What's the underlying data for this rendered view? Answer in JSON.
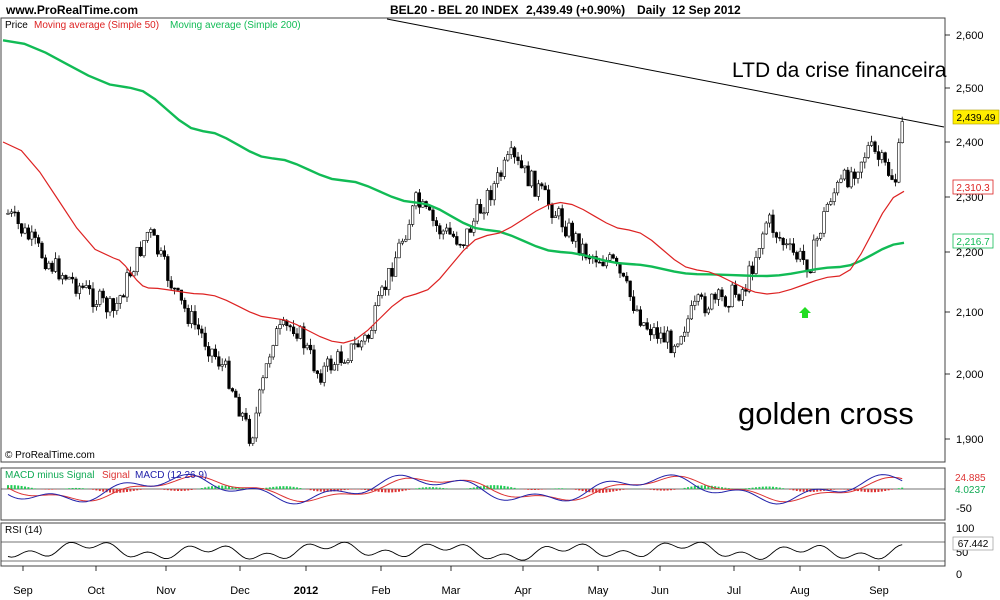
{
  "header": {
    "site": "www.ProRealTime.com",
    "instrument": "BEL20 - BEL 20 INDEX",
    "quote": "2,439.49 (+0.90%)",
    "period": "Daily",
    "date": "12 Sep 2012"
  },
  "copyright": "© ProRealTime.com",
  "legend": {
    "price": "Price",
    "ma50": "Moving average (Simple 50)",
    "ma200": "Moving average (Simple 200)"
  },
  "colors": {
    "ma50": "#dd2222",
    "ma200": "#11bb55",
    "candle": "#000000",
    "trend": "#000000",
    "arrow": "#22dd22",
    "last_bg": "#ffee00"
  },
  "chart_data": [
    {
      "type": "line",
      "title": "BEL20 - BEL 20 INDEX",
      "x_ticks": [
        "Sep",
        "Oct",
        "Nov",
        "Dec",
        "2012",
        "Feb",
        "Mar",
        "Apr",
        "May",
        "Jun",
        "Jul",
        "Aug",
        "Sep"
      ],
      "y_ticks": [
        "2,600",
        "2,500",
        "2,400",
        "2,300",
        "2,200",
        "2,100",
        "2,000",
        "1,900"
      ],
      "ylim": [
        1880,
        2625
      ],
      "series": [
        {
          "name": "Price",
          "kind": "candlestick",
          "anchors": [
            [
              "Sep",
              2270
            ],
            [
              "Sep",
              2180
            ],
            [
              "Oct",
              2100
            ],
            [
              "Oct",
              2240
            ],
            [
              "Nov",
              2120
            ],
            [
              "Nov",
              2060
            ],
            [
              "Nov",
              2000
            ],
            [
              "Dec",
              1900
            ],
            [
              "Dec",
              2060
            ],
            [
              "Dec",
              2080
            ],
            [
              "2012",
              2000
            ],
            [
              "2012",
              2030
            ],
            [
              "2012",
              2060
            ],
            [
              "Feb",
              2180
            ],
            [
              "Feb",
              2290
            ],
            [
              "Feb",
              2240
            ],
            [
              "Mar",
              2220
            ],
            [
              "Mar",
              2300
            ],
            [
              "Mar",
              2370
            ],
            [
              "Apr",
              2320
            ],
            [
              "Apr",
              2260
            ],
            [
              "Apr",
              2200
            ],
            [
              "May",
              2180
            ],
            [
              "May",
              2080
            ],
            [
              "Jun",
              2050
            ],
            [
              "Jun",
              2110
            ],
            [
              "Jun",
              2120
            ],
            [
              "Jul",
              2140
            ],
            [
              "Jul",
              2260
            ],
            [
              "Jul",
              2200
            ],
            [
              "Aug",
              2180
            ],
            [
              "Aug",
              2300
            ],
            [
              "Aug",
              2340
            ],
            [
              "Aug",
              2390
            ],
            [
              "Sep",
              2330
            ],
            [
              "Sep",
              2439.49
            ]
          ]
        },
        {
          "name": "Moving average (Simple 50)",
          "points": [
            [
              "Sep",
              2400
            ],
            [
              "Oct",
              2190
            ],
            [
              "Oct",
              2140
            ],
            [
              "Nov",
              2130
            ],
            [
              "Dec",
              2090
            ],
            [
              "2012",
              2050
            ],
            [
              "Feb",
              2130
            ],
            [
              "Mar",
              2230
            ],
            [
              "Apr",
              2290
            ],
            [
              "May",
              2240
            ],
            [
              "Jun",
              2170
            ],
            [
              "Jul",
              2130
            ],
            [
              "Aug",
              2160
            ],
            [
              "Sep",
              2310.3
            ]
          ]
        },
        {
          "name": "Moving average (Simple 200)",
          "points": [
            [
              "Sep",
              2590
            ],
            [
              "Oct",
              2500
            ],
            [
              "Nov",
              2420
            ],
            [
              "Dec",
              2370
            ],
            [
              "2012",
              2330
            ],
            [
              "Feb",
              2290
            ],
            [
              "Mar",
              2240
            ],
            [
              "Apr",
              2200
            ],
            [
              "May",
              2180
            ],
            [
              "Jun",
              2163
            ],
            [
              "Jul",
              2160
            ],
            [
              "Aug",
              2175
            ],
            [
              "Sep",
              2216.7
            ]
          ]
        }
      ],
      "value_labels": [
        "2,439.49",
        "2,310.3",
        "2,216.7"
      ],
      "annotations": [
        "LTD da crise financeira",
        "golden cross"
      ]
    },
    {
      "type": "bar",
      "title": "MACD minus Signal  Signal  MACD (12 26 9)",
      "legend": [
        "MACD minus Signal",
        "Signal",
        "MACD (12 26 9)"
      ],
      "y_ticks": [
        "-50"
      ],
      "value_labels": [
        "24.885",
        "4.0237"
      ]
    },
    {
      "type": "line",
      "title": "RSI (14)",
      "y_ticks": [
        "100",
        "50",
        "0"
      ],
      "ylim": [
        0,
        100
      ],
      "value_labels": [
        "67.442"
      ]
    }
  ]
}
